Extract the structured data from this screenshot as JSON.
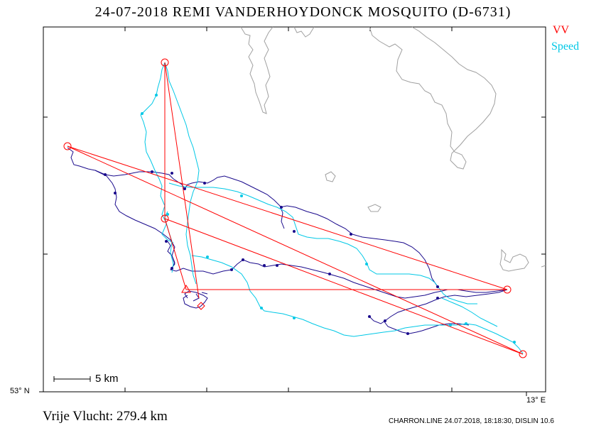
{
  "header": {
    "title": "24-07-2018   REMI VANDERHOYDONCK   MOSQUITO (D-6731)"
  },
  "legend": {
    "vv_label": "VV",
    "speed_label": "Speed",
    "vv_color": "#ff0000",
    "speed_color": "#00c8e6",
    "track_color": "#1a0a8c"
  },
  "map": {
    "scale_label": "5 km",
    "lat_label": "53° N",
    "lon_label": "13° E",
    "coast_color": "#a0a0a0"
  },
  "summary": {
    "distance_text": "Vrije Vlucht:  279.4 km"
  },
  "footer": {
    "text": "CHARRON.LINE 24.07.2018, 18:18:30, DISLIN 10.6"
  }
}
